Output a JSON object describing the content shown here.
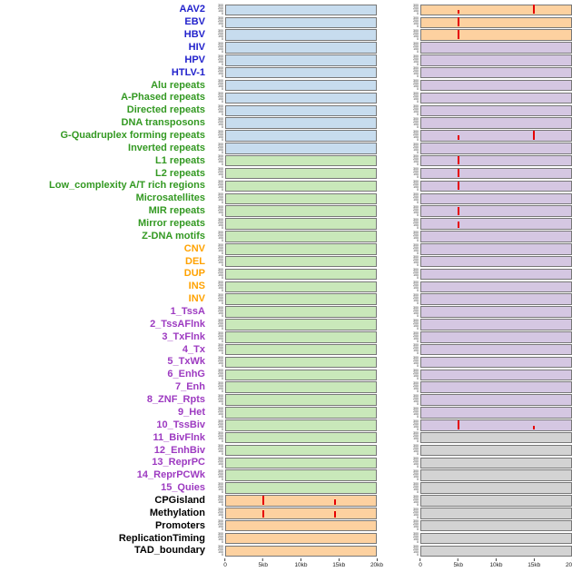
{
  "figure_type": "genomic-feature-track-matrix",
  "colors": {
    "label": {
      "blue": "#2222cc",
      "green": "#339922",
      "orange": "#ffa200",
      "purple": "#9d3ac1",
      "black": "#000000"
    },
    "panel": {
      "lightblue": "#c7dcee",
      "lightgreen": "#c9e8ba",
      "peach": "#fdd1a0",
      "lavender": "#d5c7e2",
      "gray": "#d3d3d3"
    },
    "peak": "#e60000"
  },
  "chart_data": {
    "type": "bar",
    "description": "44 genomic feature tracks, each with two signal panels over a 0-20kb window; red vertical bars mark signal peaks",
    "x_ticks": [
      "0",
      "5kb",
      "10kb",
      "15kb",
      "20kb"
    ],
    "x_max_kb": 20,
    "yticks_default": [
      "300",
      "200",
      "100",
      "0"
    ],
    "tracks": [
      {
        "label": "AAV2",
        "label_color": "blue",
        "left_bg": "lightblue",
        "right_bg": "peach",
        "left_peaks": [],
        "right_peaks": [
          {
            "x_kb": 5,
            "h": 0.4
          },
          {
            "x_kb": 15,
            "h": 0.95
          }
        ]
      },
      {
        "label": "EBV",
        "label_color": "blue",
        "left_bg": "lightblue",
        "right_bg": "peach",
        "left_peaks": [],
        "right_peaks": [
          {
            "x_kb": 5,
            "h": 0.95
          }
        ]
      },
      {
        "label": "HBV",
        "label_color": "blue",
        "left_bg": "lightblue",
        "right_bg": "peach",
        "left_peaks": [],
        "right_peaks": [
          {
            "x_kb": 5,
            "h": 0.95
          }
        ]
      },
      {
        "label": "HIV",
        "label_color": "blue",
        "left_bg": "lightblue",
        "right_bg": "lavender",
        "left_peaks": [],
        "right_peaks": []
      },
      {
        "label": "HPV",
        "label_color": "blue",
        "left_bg": "lightblue",
        "right_bg": "lavender",
        "left_peaks": [],
        "right_peaks": []
      },
      {
        "label": "HTLV-1",
        "label_color": "blue",
        "left_bg": "lightblue",
        "right_bg": "lavender",
        "left_peaks": [],
        "right_peaks": []
      },
      {
        "label": "Alu repeats",
        "label_color": "green",
        "left_bg": "lightblue",
        "right_bg": "lavender",
        "left_peaks": [],
        "right_peaks": []
      },
      {
        "label": "A-Phased repeats",
        "label_color": "green",
        "left_bg": "lightblue",
        "right_bg": "lavender",
        "left_peaks": [],
        "right_peaks": []
      },
      {
        "label": "Directed repeats",
        "label_color": "green",
        "left_bg": "lightblue",
        "right_bg": "lavender",
        "left_peaks": [],
        "right_peaks": []
      },
      {
        "label": "DNA transposons",
        "label_color": "green",
        "left_bg": "lightblue",
        "right_bg": "lavender",
        "left_peaks": [],
        "right_peaks": []
      },
      {
        "label": "G-Quadruplex forming repeats",
        "label_color": "green",
        "left_bg": "lightblue",
        "right_bg": "lavender",
        "left_peaks": [],
        "right_peaks": [
          {
            "x_kb": 5,
            "h": 0.5
          },
          {
            "x_kb": 15,
            "h": 0.95
          }
        ]
      },
      {
        "label": "Inverted repeats",
        "label_color": "green",
        "left_bg": "lightblue",
        "right_bg": "lavender",
        "left_peaks": [],
        "right_peaks": []
      },
      {
        "label": "L1 repeats",
        "label_color": "green",
        "left_bg": "lightgreen",
        "right_bg": "lavender",
        "left_peaks": [],
        "right_peaks": [
          {
            "x_kb": 5,
            "h": 0.95
          }
        ]
      },
      {
        "label": "L2 repeats",
        "label_color": "green",
        "left_bg": "lightgreen",
        "right_bg": "lavender",
        "left_peaks": [],
        "right_peaks": [
          {
            "x_kb": 5,
            "h": 0.85
          }
        ]
      },
      {
        "label": "Low_complexity A/T rich regions",
        "label_color": "green",
        "left_bg": "lightgreen",
        "right_bg": "lavender",
        "left_peaks": [],
        "right_peaks": [
          {
            "x_kb": 5,
            "h": 0.85
          }
        ]
      },
      {
        "label": "Microsatellites",
        "label_color": "green",
        "left_bg": "lightgreen",
        "right_bg": "lavender",
        "left_peaks": [],
        "right_peaks": []
      },
      {
        "label": "MIR repeats",
        "label_color": "green",
        "left_bg": "lightgreen",
        "right_bg": "lavender",
        "left_peaks": [],
        "right_peaks": [
          {
            "x_kb": 5,
            "h": 0.85
          }
        ]
      },
      {
        "label": "Mirror repeats",
        "label_color": "green",
        "left_bg": "lightgreen",
        "right_bg": "lavender",
        "left_peaks": [],
        "right_peaks": [
          {
            "x_kb": 5,
            "h": 0.65
          }
        ]
      },
      {
        "label": "Z-DNA motifs",
        "label_color": "green",
        "left_bg": "lightgreen",
        "right_bg": "lavender",
        "left_peaks": [],
        "right_peaks": []
      },
      {
        "label": "CNV",
        "label_color": "orange",
        "left_bg": "lightgreen",
        "right_bg": "lavender",
        "left_peaks": [],
        "right_peaks": []
      },
      {
        "label": "DEL",
        "label_color": "orange",
        "left_bg": "lightgreen",
        "right_bg": "lavender",
        "left_peaks": [],
        "right_peaks": []
      },
      {
        "label": "DUP",
        "label_color": "orange",
        "left_bg": "lightgreen",
        "right_bg": "lavender",
        "left_peaks": [],
        "right_peaks": []
      },
      {
        "label": "INS",
        "label_color": "orange",
        "left_bg": "lightgreen",
        "right_bg": "lavender",
        "left_peaks": [],
        "right_peaks": []
      },
      {
        "label": "INV",
        "label_color": "orange",
        "left_bg": "lightgreen",
        "right_bg": "lavender",
        "left_peaks": [],
        "right_peaks": []
      },
      {
        "label": "1_TssA",
        "label_color": "purple",
        "left_bg": "lightgreen",
        "right_bg": "lavender",
        "left_peaks": [],
        "right_peaks": []
      },
      {
        "label": "2_TssAFlnk",
        "label_color": "purple",
        "left_bg": "lightgreen",
        "right_bg": "lavender",
        "left_peaks": [],
        "right_peaks": []
      },
      {
        "label": "3_TxFlnk",
        "label_color": "purple",
        "left_bg": "lightgreen",
        "right_bg": "lavender",
        "left_peaks": [],
        "right_peaks": []
      },
      {
        "label": "4_Tx",
        "label_color": "purple",
        "left_bg": "lightgreen",
        "right_bg": "lavender",
        "left_peaks": [],
        "right_peaks": []
      },
      {
        "label": "5_TxWk",
        "label_color": "purple",
        "left_bg": "lightgreen",
        "right_bg": "lavender",
        "left_peaks": [],
        "right_peaks": []
      },
      {
        "label": "6_EnhG",
        "label_color": "purple",
        "left_bg": "lightgreen",
        "right_bg": "lavender",
        "left_peaks": [],
        "right_peaks": []
      },
      {
        "label": "7_Enh",
        "label_color": "purple",
        "left_bg": "lightgreen",
        "right_bg": "lavender",
        "left_peaks": [],
        "right_peaks": []
      },
      {
        "label": "8_ZNF_Rpts",
        "label_color": "purple",
        "left_bg": "lightgreen",
        "right_bg": "lavender",
        "left_peaks": [],
        "right_peaks": []
      },
      {
        "label": "9_Het",
        "label_color": "purple",
        "left_bg": "lightgreen",
        "right_bg": "lavender",
        "left_peaks": [],
        "right_peaks": []
      },
      {
        "label": "10_TssBiv",
        "label_color": "purple",
        "left_bg": "lightgreen",
        "right_bg": "lavender",
        "left_peaks": [],
        "right_peaks": [
          {
            "x_kb": 5,
            "h": 0.95
          },
          {
            "x_kb": 15,
            "h": 0.3
          }
        ]
      },
      {
        "label": "11_BivFlnk",
        "label_color": "purple",
        "left_bg": "lightgreen",
        "right_bg": "gray",
        "left_peaks": [],
        "right_peaks": []
      },
      {
        "label": "12_EnhBiv",
        "label_color": "purple",
        "left_bg": "lightgreen",
        "right_bg": "gray",
        "left_peaks": [],
        "right_peaks": []
      },
      {
        "label": "13_ReprPC",
        "label_color": "purple",
        "left_bg": "lightgreen",
        "right_bg": "gray",
        "left_peaks": [],
        "right_peaks": []
      },
      {
        "label": "14_ReprPCWk",
        "label_color": "purple",
        "left_bg": "lightgreen",
        "right_bg": "gray",
        "left_peaks": [],
        "right_peaks": []
      },
      {
        "label": "15_Quies",
        "label_color": "purple",
        "left_bg": "lightgreen",
        "right_bg": "gray",
        "left_peaks": [],
        "right_peaks": []
      },
      {
        "label": "CPGisland",
        "label_color": "black",
        "left_bg": "peach",
        "right_bg": "gray",
        "left_peaks": [
          {
            "x_kb": 5,
            "h": 0.95
          },
          {
            "x_kb": 14.5,
            "h": 0.55
          }
        ],
        "right_peaks": []
      },
      {
        "label": "Methylation",
        "label_color": "black",
        "left_bg": "peach",
        "right_bg": "gray",
        "left_peaks": [
          {
            "x_kb": 5,
            "h": 0.75
          },
          {
            "x_kb": 14.5,
            "h": 0.6
          }
        ],
        "right_peaks": []
      },
      {
        "label": "Promoters",
        "label_color": "black",
        "left_bg": "peach",
        "right_bg": "gray",
        "left_peaks": [],
        "right_peaks": []
      },
      {
        "label": "ReplicationTiming",
        "label_color": "black",
        "left_bg": "peach",
        "right_bg": "gray",
        "left_peaks": [],
        "right_peaks": []
      },
      {
        "label": "TAD_boundary",
        "label_color": "black",
        "left_bg": "peach",
        "right_bg": "gray",
        "left_peaks": [],
        "right_peaks": []
      }
    ]
  }
}
